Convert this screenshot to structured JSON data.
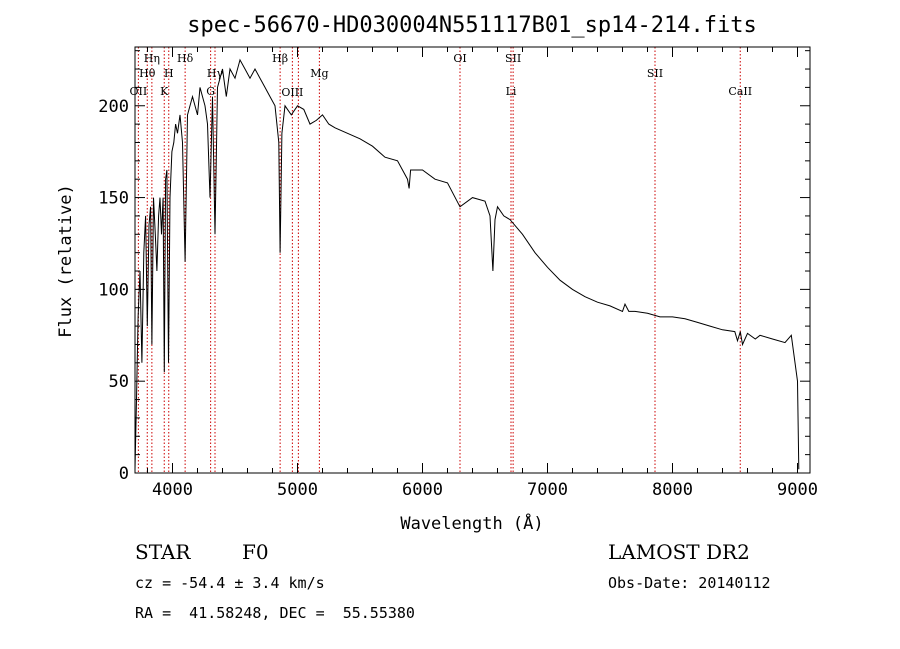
{
  "title": "spec-56670-HD030004N551117B01_sp14-214.fits",
  "chart_data": {
    "type": "line",
    "title": "spec-56670-HD030004N551117B01_sp14-214.fits",
    "xlabel": "Wavelength (Å)",
    "ylabel": "Flux (relative)",
    "xlim": [
      3700,
      9100
    ],
    "ylim": [
      0,
      232
    ],
    "x_ticks": [
      4000,
      5000,
      6000,
      7000,
      8000,
      9000
    ],
    "y_ticks": [
      0,
      50,
      100,
      150,
      200
    ],
    "grid": false,
    "series": [
      {
        "x": [
          3700,
          3712,
          3725,
          3740,
          3755,
          3770,
          3785,
          3798,
          3812,
          3825,
          3835,
          3848,
          3862,
          3875,
          3889,
          3900,
          3912,
          3925,
          3934,
          3945,
          3955,
          3968,
          3980,
          3995,
          4010,
          4025,
          4040,
          4060,
          4080,
          4101,
          4120,
          4140,
          4160,
          4180,
          4200,
          4220,
          4240,
          4260,
          4280,
          4300,
          4320,
          4340,
          4360,
          4380,
          4400,
          4430,
          4460,
          4500,
          4540,
          4580,
          4620,
          4660,
          4700,
          4740,
          4780,
          4820,
          4850,
          4861,
          4875,
          4900,
          4950,
          5000,
          5050,
          5100,
          5150,
          5200,
          5250,
          5300,
          5400,
          5500,
          5600,
          5700,
          5800,
          5880,
          5893,
          5905,
          6000,
          6100,
          6200,
          6300,
          6400,
          6500,
          6540,
          6563,
          6580,
          6600,
          6650,
          6700,
          6800,
          6900,
          7000,
          7100,
          7200,
          7300,
          7400,
          7500,
          7600,
          7620,
          7650,
          7700,
          7800,
          7900,
          8000,
          8100,
          8200,
          8300,
          8400,
          8498,
          8520,
          8542,
          8560,
          8600,
          8662,
          8700,
          8800,
          8900,
          8950,
          9000,
          9010
        ],
        "y": [
          2,
          40,
          85,
          110,
          60,
          120,
          140,
          80,
          135,
          145,
          70,
          150,
          130,
          110,
          140,
          150,
          130,
          150,
          55,
          160,
          165,
          60,
          150,
          175,
          180,
          190,
          185,
          195,
          180,
          115,
          195,
          200,
          205,
          200,
          195,
          210,
          205,
          200,
          190,
          150,
          205,
          130,
          210,
          215,
          220,
          205,
          220,
          215,
          225,
          220,
          215,
          220,
          215,
          210,
          205,
          200,
          180,
          120,
          185,
          200,
          195,
          200,
          198,
          190,
          192,
          195,
          190,
          188,
          185,
          182,
          178,
          172,
          170,
          160,
          155,
          165,
          165,
          160,
          158,
          145,
          150,
          148,
          140,
          110,
          138,
          145,
          140,
          138,
          130,
          120,
          112,
          105,
          100,
          96,
          93,
          91,
          88,
          92,
          88,
          88,
          87,
          85,
          85,
          84,
          82,
          80,
          78,
          77,
          72,
          77,
          70,
          76,
          73,
          75,
          73,
          71,
          75,
          50,
          2
        ]
      }
    ],
    "line_markers": [
      {
        "wavelength": 3727,
        "label": "OII",
        "row": 4
      },
      {
        "wavelength": 3798,
        "label": "Hθ",
        "row": 3
      },
      {
        "wavelength": 3835,
        "label": "Hη",
        "row": 1
      },
      {
        "wavelength": 3934,
        "label": "K",
        "row": 4
      },
      {
        "wavelength": 3970,
        "label": "H",
        "row": 3
      },
      {
        "wavelength": 4101,
        "label": "Hδ",
        "row": 1
      },
      {
        "wavelength": 4305,
        "label": "G",
        "row": 4
      },
      {
        "wavelength": 4340,
        "label": "Hγ",
        "row": 3
      },
      {
        "wavelength": 4861,
        "label": "Hβ",
        "row": 1
      },
      {
        "wavelength": 4959,
        "label": "OIII",
        "row": 5
      },
      {
        "wavelength": 5007,
        "label": "",
        "row": 5
      },
      {
        "wavelength": 5175,
        "label": "Mg",
        "row": 3
      },
      {
        "wavelength": 6300,
        "label": "OI",
        "row": 1
      },
      {
        "wavelength": 6708,
        "label": "Li",
        "row": 4
      },
      {
        "wavelength": 6725,
        "label": "SII",
        "row": 1
      },
      {
        "wavelength": 7860,
        "label": "SII",
        "row": 3
      },
      {
        "wavelength": 8542,
        "label": "CaII",
        "row": 4
      }
    ]
  },
  "info": {
    "object_type": "STAR",
    "subclass": "F0",
    "survey": "LAMOST DR2",
    "redshift": "cz = -54.4 ± 3.4 km/s",
    "obs_date": "Obs-Date: 20140112",
    "coords": "RA =  41.58248, DEC =  55.55380"
  },
  "colors": {
    "spectrum": "#000000",
    "line_markers": "#cc0000",
    "axes": "#000000"
  }
}
